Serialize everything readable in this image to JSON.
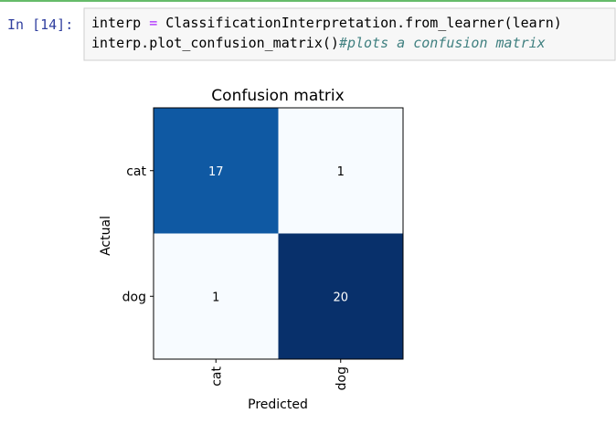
{
  "cell": {
    "prompt": "In [14]:",
    "code": [
      [
        "interp ",
        "=",
        " ClassificationInterpretation.from_learner(learn)"
      ],
      [
        "interp.plot_confusion_matrix()",
        "#plots a confusion matrix"
      ]
    ]
  },
  "chart_data": {
    "type": "heatmap",
    "title": "Confusion matrix",
    "x_label": "Predicted",
    "y_label": "Actual",
    "x_categories": [
      "cat",
      "dog"
    ],
    "y_categories": [
      "cat",
      "dog"
    ],
    "values": [
      [
        17,
        1
      ],
      [
        1,
        20
      ]
    ],
    "colormap": [
      "#f7fbff",
      "#deebf7",
      "#c6dbef",
      "#9ecae1",
      "#6baed6",
      "#4292c6",
      "#2171b5",
      "#08519c",
      "#08306b"
    ]
  }
}
